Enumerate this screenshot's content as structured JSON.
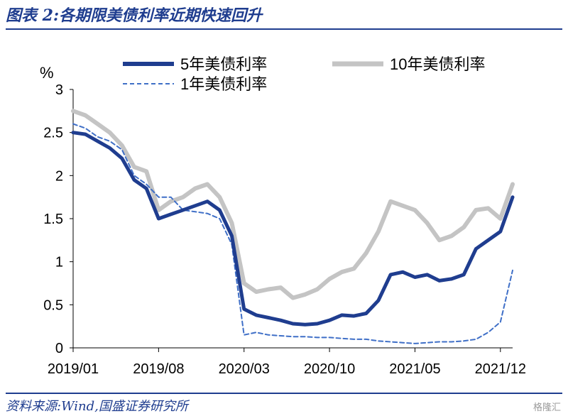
{
  "header": {
    "title": "图表 2:各期限美债利率近期快速回升"
  },
  "footer": {
    "source": "资料来源:Wind,国盛证券研究所",
    "watermark": "格隆汇"
  },
  "chart_data": {
    "type": "line",
    "ylabel": "%",
    "ylim": [
      0,
      3
    ],
    "yticks": [
      "0",
      "0.5",
      "1",
      "1.5",
      "2",
      "2.5",
      "3"
    ],
    "xticks": [
      "2019/01",
      "2019/08",
      "2020/03",
      "2020/10",
      "2021/05",
      "2021/12"
    ],
    "grid": false,
    "legend": "top",
    "x": [
      "2019/01",
      "2019/02",
      "2019/03",
      "2019/04",
      "2019/05",
      "2019/06",
      "2019/07",
      "2019/08",
      "2019/09",
      "2019/10",
      "2019/11",
      "2019/12",
      "2020/01",
      "2020/02",
      "2020/03",
      "2020/04",
      "2020/05",
      "2020/06",
      "2020/07",
      "2020/08",
      "2020/09",
      "2020/10",
      "2020/11",
      "2020/12",
      "2021/01",
      "2021/02",
      "2021/03",
      "2021/04",
      "2021/05",
      "2021/06",
      "2021/07",
      "2021/08",
      "2021/09",
      "2021/10",
      "2021/11",
      "2021/12",
      "2022/01"
    ],
    "series": [
      {
        "name": "5年美债利率",
        "color": "#1f3d8f",
        "style": "solid-thick",
        "values": [
          2.5,
          2.48,
          2.4,
          2.32,
          2.2,
          1.95,
          1.85,
          1.5,
          1.55,
          1.6,
          1.65,
          1.7,
          1.6,
          1.3,
          0.45,
          0.38,
          0.35,
          0.32,
          0.28,
          0.27,
          0.28,
          0.32,
          0.38,
          0.37,
          0.4,
          0.55,
          0.85,
          0.88,
          0.82,
          0.85,
          0.78,
          0.8,
          0.85,
          1.15,
          1.25,
          1.35,
          1.75
        ]
      },
      {
        "name": "10年美债利率",
        "color": "#c4c4c4",
        "style": "solid-thick",
        "values": [
          2.75,
          2.7,
          2.6,
          2.5,
          2.35,
          2.1,
          2.05,
          1.6,
          1.7,
          1.75,
          1.85,
          1.9,
          1.75,
          1.45,
          0.75,
          0.65,
          0.68,
          0.7,
          0.58,
          0.62,
          0.68,
          0.8,
          0.88,
          0.92,
          1.1,
          1.35,
          1.7,
          1.65,
          1.6,
          1.45,
          1.25,
          1.3,
          1.4,
          1.6,
          1.62,
          1.5,
          1.9
        ]
      },
      {
        "name": "1年美债利率",
        "color": "#3f6fc7",
        "style": "dashed",
        "values": [
          2.6,
          2.55,
          2.45,
          2.4,
          2.3,
          2.0,
          1.9,
          1.75,
          1.75,
          1.6,
          1.58,
          1.56,
          1.5,
          1.2,
          0.15,
          0.18,
          0.15,
          0.14,
          0.13,
          0.13,
          0.12,
          0.12,
          0.11,
          0.1,
          0.1,
          0.08,
          0.07,
          0.06,
          0.05,
          0.06,
          0.07,
          0.07,
          0.08,
          0.1,
          0.18,
          0.3,
          0.9
        ]
      }
    ]
  }
}
